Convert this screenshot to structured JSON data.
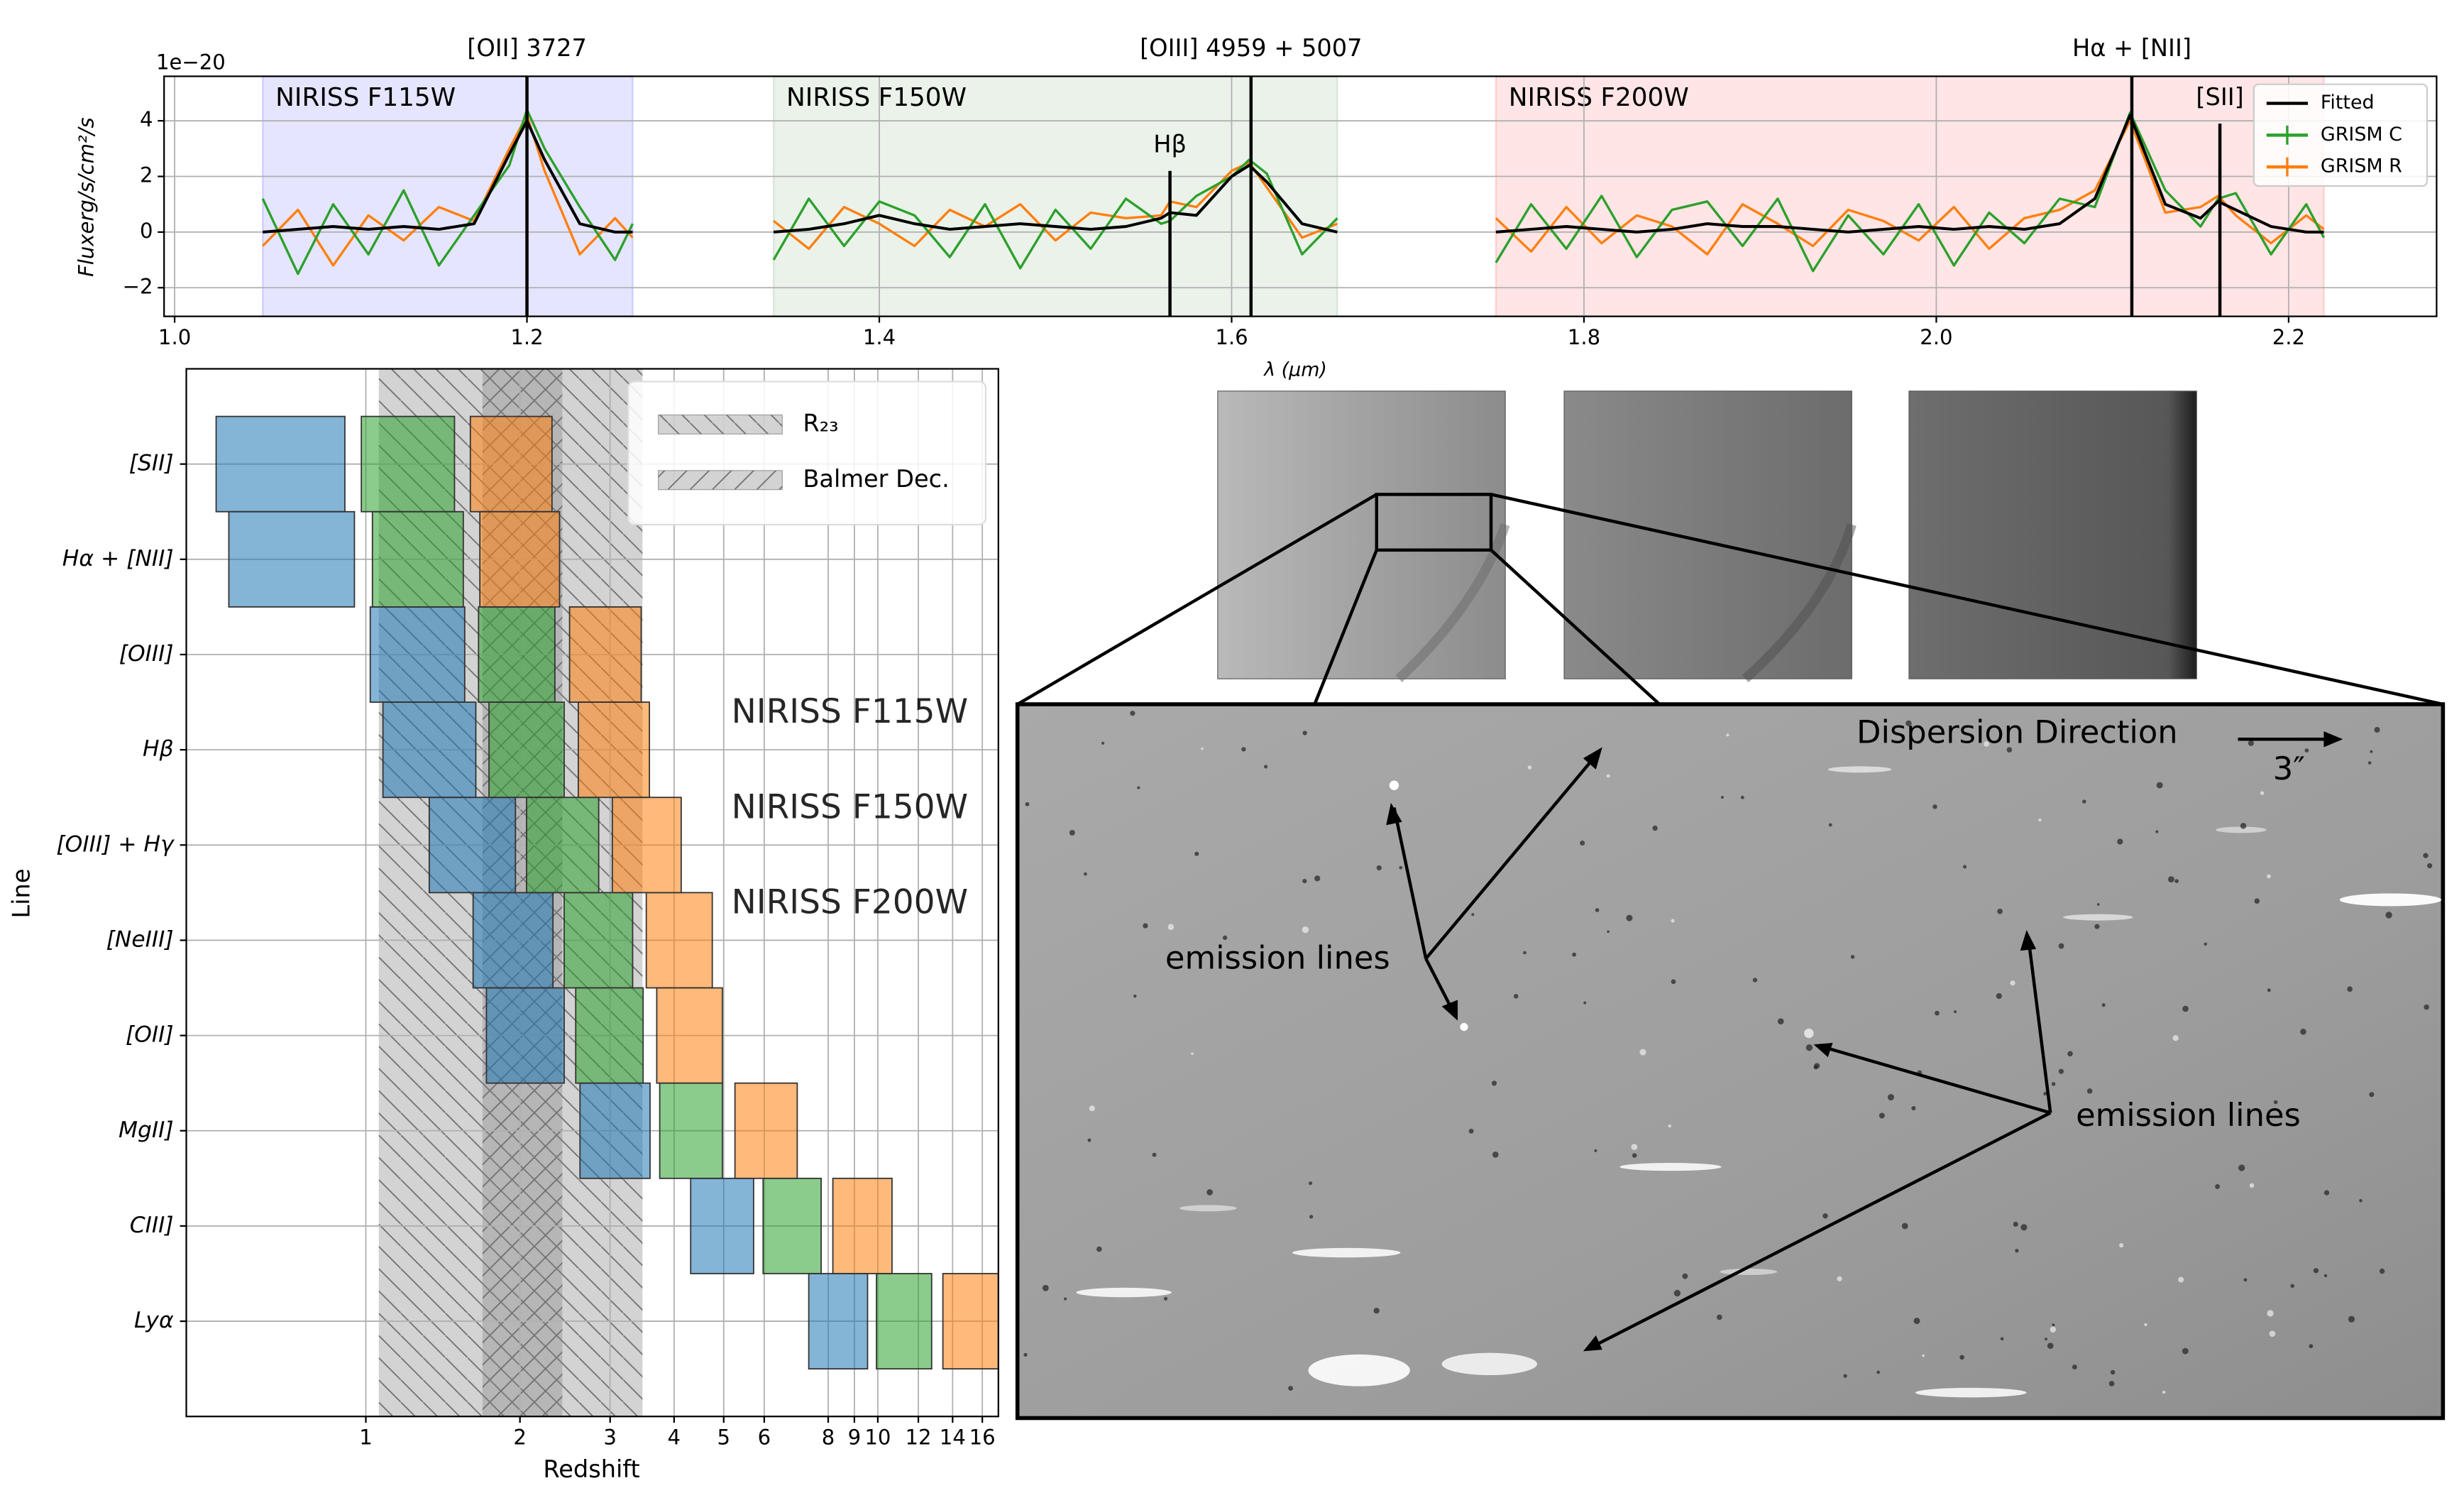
{
  "chart_data": [
    {
      "type": "line",
      "xlabel": "λ (μm)",
      "ylabel": "Fluxerg/s/cm²/s",
      "y_offset_text": "1e−20",
      "xlim": [
        0.994,
        2.284
      ],
      "ylim": [
        -3.03,
        5.6
      ],
      "xticks": [
        {
          "value": 1,
          "label": "1.0"
        },
        1.2,
        1.4,
        1.6,
        1.8,
        {
          "value": 2,
          "label": "2.0"
        },
        2.2
      ],
      "yticks": [
        {
          "value": -2,
          "label": "−2"
        },
        0,
        2,
        4
      ],
      "grid": true,
      "legend": "upper right",
      "bands": [
        {
          "label": "NIRISS F115W",
          "range": [
            1.05,
            1.26
          ],
          "color": "#0000ff"
        },
        {
          "label": "NIRISS F150W",
          "range": [
            1.34,
            1.66
          ],
          "color": "#2e7d32"
        },
        {
          "label": "NIRISS F200W",
          "range": [
            1.75,
            2.22
          ],
          "color": "#ff0000"
        }
      ],
      "lines": [
        {
          "label": "[OII] 3727",
          "x": 1.2
        },
        {
          "label": "Hβ",
          "x": 1.565,
          "y_top": 2.2
        },
        {
          "label": "[OIII] 4959 + 5007",
          "x": 1.611
        },
        {
          "label": "Hα + [NII]",
          "x": 2.111
        },
        {
          "label": "[SII]",
          "x": 2.161,
          "y_top": 3.9
        }
      ],
      "x": [
        1.05,
        1.07,
        1.09,
        1.11,
        1.13,
        1.15,
        1.17,
        1.19,
        1.2,
        1.21,
        1.23,
        1.25,
        1.26,
        1.3,
        1.34,
        1.36,
        1.38,
        1.4,
        1.42,
        1.44,
        1.46,
        1.48,
        1.5,
        1.52,
        1.54,
        1.56,
        1.565,
        1.58,
        1.6,
        1.61,
        1.62,
        1.64,
        1.66,
        1.7,
        1.75,
        1.77,
        1.79,
        1.81,
        1.83,
        1.85,
        1.87,
        1.89,
        1.91,
        1.93,
        1.95,
        1.97,
        1.99,
        2.01,
        2.03,
        2.05,
        2.07,
        2.09,
        2.11,
        2.13,
        2.15,
        2.16,
        2.17,
        2.19,
        2.21,
        2.22
      ],
      "series": [
        {
          "name": "GRISM R",
          "color": "#ff7f0e",
          "values": [
            -0.5,
            0.8,
            -1.2,
            0.6,
            -0.3,
            0.9,
            0.4,
            3.0,
            4.2,
            2.2,
            -0.8,
            0.5,
            -0.2,
            null,
            0.4,
            -0.6,
            0.9,
            0.3,
            -0.5,
            0.8,
            0.2,
            1.0,
            -0.3,
            0.7,
            0.5,
            0.6,
            1.1,
            0.9,
            2.2,
            2.5,
            1.6,
            -0.2,
            0.3,
            null,
            0.5,
            -0.7,
            0.9,
            -0.4,
            0.6,
            0.2,
            -0.8,
            1.0,
            0.3,
            -0.5,
            0.8,
            0.4,
            -0.3,
            0.9,
            -0.6,
            0.5,
            0.8,
            1.5,
            4.0,
            0.7,
            0.9,
            1.3,
            0.6,
            -0.4,
            0.6,
            0.1
          ]
        },
        {
          "name": "GRISM C",
          "color": "#2ca02c",
          "values": [
            1.2,
            -1.5,
            1.0,
            -0.8,
            1.5,
            -1.2,
            0.6,
            2.4,
            4.4,
            3.0,
            0.9,
            -1.0,
            0.3,
            null,
            -1.0,
            1.2,
            -0.5,
            1.1,
            0.6,
            -0.9,
            1.0,
            -1.3,
            0.8,
            -0.6,
            1.2,
            0.3,
            0.4,
            1.3,
            2.0,
            2.6,
            2.1,
            -0.8,
            0.5,
            null,
            -1.1,
            1.0,
            -0.6,
            1.3,
            -0.9,
            0.8,
            1.1,
            -0.5,
            1.2,
            -1.4,
            0.6,
            -0.8,
            1.0,
            -1.2,
            0.7,
            -0.4,
            1.2,
            0.9,
            4.3,
            1.5,
            0.2,
            1.2,
            1.4,
            -0.8,
            1.0,
            -0.2
          ]
        },
        {
          "name": "Fitted",
          "color": "#000000",
          "values": [
            0,
            0.1,
            0.2,
            0.1,
            0.2,
            0.1,
            0.3,
            2.8,
            4,
            2.6,
            0.3,
            0,
            0,
            null,
            0,
            0.1,
            0.3,
            0.6,
            0.3,
            0.1,
            0.2,
            0.3,
            0.2,
            0.1,
            0.2,
            0.5,
            0.7,
            0.6,
            2.0,
            2.4,
            1.8,
            0.3,
            0,
            null,
            0,
            0.1,
            0.2,
            0.1,
            0,
            0.1,
            0.3,
            0.2,
            0.2,
            0.1,
            0,
            0.1,
            0.2,
            0.1,
            0.2,
            0.1,
            0.3,
            1.2,
            4.2,
            1.0,
            0.5,
            1.1,
            0.8,
            0.2,
            0,
            0
          ]
        }
      ]
    },
    {
      "type": "range-bar",
      "xlabel": "Redshift",
      "ylabel": "Line",
      "xscale": "log",
      "xlim": [
        0.446,
        17.2
      ],
      "xticks": [
        1,
        2,
        3,
        4,
        5,
        6,
        8,
        9,
        10,
        12,
        14,
        16
      ],
      "grid": true,
      "legend": "upper right",
      "categories": [
        "[SII]",
        "Hα + [NII]",
        "[OIII]",
        "Hβ",
        "[OIII] + Hγ",
        "[NeIII]",
        "[OII]",
        "MgII]",
        "CIII]",
        "Lyα"
      ],
      "regions": [
        {
          "name": "R₂₃",
          "range": [
            1.06,
            3.47
          ],
          "color": "#808080",
          "hatch": "\\"
        },
        {
          "name": "Balmer Dec.",
          "range": [
            1.69,
            2.42
          ],
          "color": "#808080",
          "hatch": "/"
        }
      ],
      "series": [
        {
          "name": "NIRISS F115W",
          "color": "#1f77b4",
          "values": [
            [
              0.51,
              0.91
            ],
            [
              0.54,
              0.95
            ],
            [
              1.02,
              1.56
            ],
            [
              1.08,
              1.64
            ],
            [
              1.33,
              1.96
            ],
            [
              1.62,
              2.32
            ],
            [
              1.72,
              2.44
            ],
            [
              2.62,
              3.59
            ],
            [
              4.31,
              5.72
            ],
            [
              7.33,
              9.55
            ]
          ]
        },
        {
          "name": "NIRISS F150W",
          "color": "#2ca02c",
          "values": [
            [
              0.98,
              1.49
            ],
            [
              1.03,
              1.55
            ],
            [
              1.66,
              2.34
            ],
            [
              1.74,
              2.44
            ],
            [
              2.06,
              2.85
            ],
            [
              2.44,
              3.32
            ],
            [
              2.57,
              3.48
            ],
            [
              3.75,
              4.97
            ],
            [
              5.97,
              7.75
            ],
            [
              9.94,
              12.74
            ]
          ]
        },
        {
          "name": "NIRISS F200W",
          "color": "#ff7f0e",
          "values": [
            [
              1.6,
              2.31
            ],
            [
              1.67,
              2.39
            ],
            [
              2.5,
              3.45
            ],
            [
              2.6,
              3.58
            ],
            [
              3.03,
              4.13
            ],
            [
              3.53,
              4.75
            ],
            [
              3.7,
              4.97
            ],
            [
              5.26,
              6.96
            ],
            [
              8.17,
              10.66
            ],
            [
              13.4,
              17.31
            ]
          ]
        }
      ]
    }
  ],
  "image_panel": {
    "direction": "Dispersion Direction",
    "scale": "3″",
    "emission_left": "emission lines",
    "emission_right": "emission lines"
  }
}
